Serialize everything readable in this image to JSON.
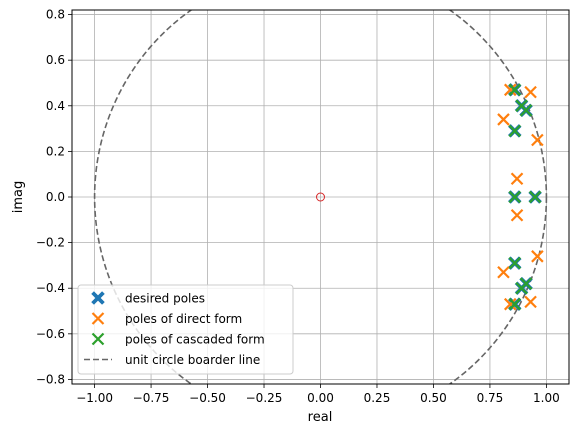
{
  "chart_data": {
    "type": "scatter",
    "title": "",
    "xlabel": "real",
    "ylabel": "imag",
    "xlim": [
      -1.1,
      1.1
    ],
    "ylim": [
      -0.82,
      0.82
    ],
    "xticks": [
      -1.0,
      -0.75,
      -0.5,
      -0.25,
      0.0,
      0.25,
      0.5,
      0.75,
      1.0
    ],
    "xtick_labels": [
      "−1.00",
      "−0.75",
      "−0.50",
      "−0.25",
      "0.00",
      "0.25",
      "0.50",
      "0.75",
      "1.00"
    ],
    "yticks": [
      -0.8,
      -0.6,
      -0.4,
      -0.2,
      0.0,
      0.2,
      0.4,
      0.6,
      0.8
    ],
    "ytick_labels": [
      "−0.8",
      "−0.6",
      "−0.4",
      "−0.2",
      "0.0",
      "0.2",
      "0.4",
      "0.6",
      "0.8"
    ],
    "grid": true,
    "legend_placement": "lower-left",
    "series": [
      {
        "name": "desired poles",
        "marker": "X-filled",
        "color": "#1f77b4",
        "points": [
          [
            0.86,
            0.47
          ],
          [
            0.89,
            0.4
          ],
          [
            0.91,
            0.38
          ],
          [
            0.86,
            0.29
          ],
          [
            0.86,
            0.0
          ],
          [
            0.95,
            0.0
          ],
          [
            0.86,
            -0.29
          ],
          [
            0.91,
            -0.38
          ],
          [
            0.89,
            -0.4
          ],
          [
            0.86,
            -0.47
          ]
        ]
      },
      {
        "name": "poles of direct form",
        "marker": "x",
        "color": "#ff7f0e",
        "points": [
          [
            0.84,
            0.47
          ],
          [
            0.93,
            0.46
          ],
          [
            0.81,
            0.34
          ],
          [
            0.96,
            0.25
          ],
          [
            0.87,
            0.08
          ],
          [
            0.87,
            -0.08
          ],
          [
            0.96,
            -0.26
          ],
          [
            0.81,
            -0.33
          ],
          [
            0.93,
            -0.46
          ],
          [
            0.84,
            -0.47
          ]
        ]
      },
      {
        "name": "poles of cascaded form",
        "marker": "x",
        "color": "#2ca02c",
        "points": [
          [
            0.86,
            0.47
          ],
          [
            0.89,
            0.4
          ],
          [
            0.91,
            0.38
          ],
          [
            0.86,
            0.29
          ],
          [
            0.86,
            0.0
          ],
          [
            0.95,
            0.0
          ],
          [
            0.86,
            -0.29
          ],
          [
            0.91,
            -0.38
          ],
          [
            0.89,
            -0.4
          ],
          [
            0.86,
            -0.47
          ]
        ]
      },
      {
        "name": "unit circle boarder line",
        "marker": "dashed-line",
        "color": "#666666",
        "circle": {
          "center": [
            0,
            0
          ],
          "radius": 1
        }
      }
    ],
    "zero_marker": {
      "point": [
        0,
        0
      ],
      "color": "#d62728"
    }
  }
}
